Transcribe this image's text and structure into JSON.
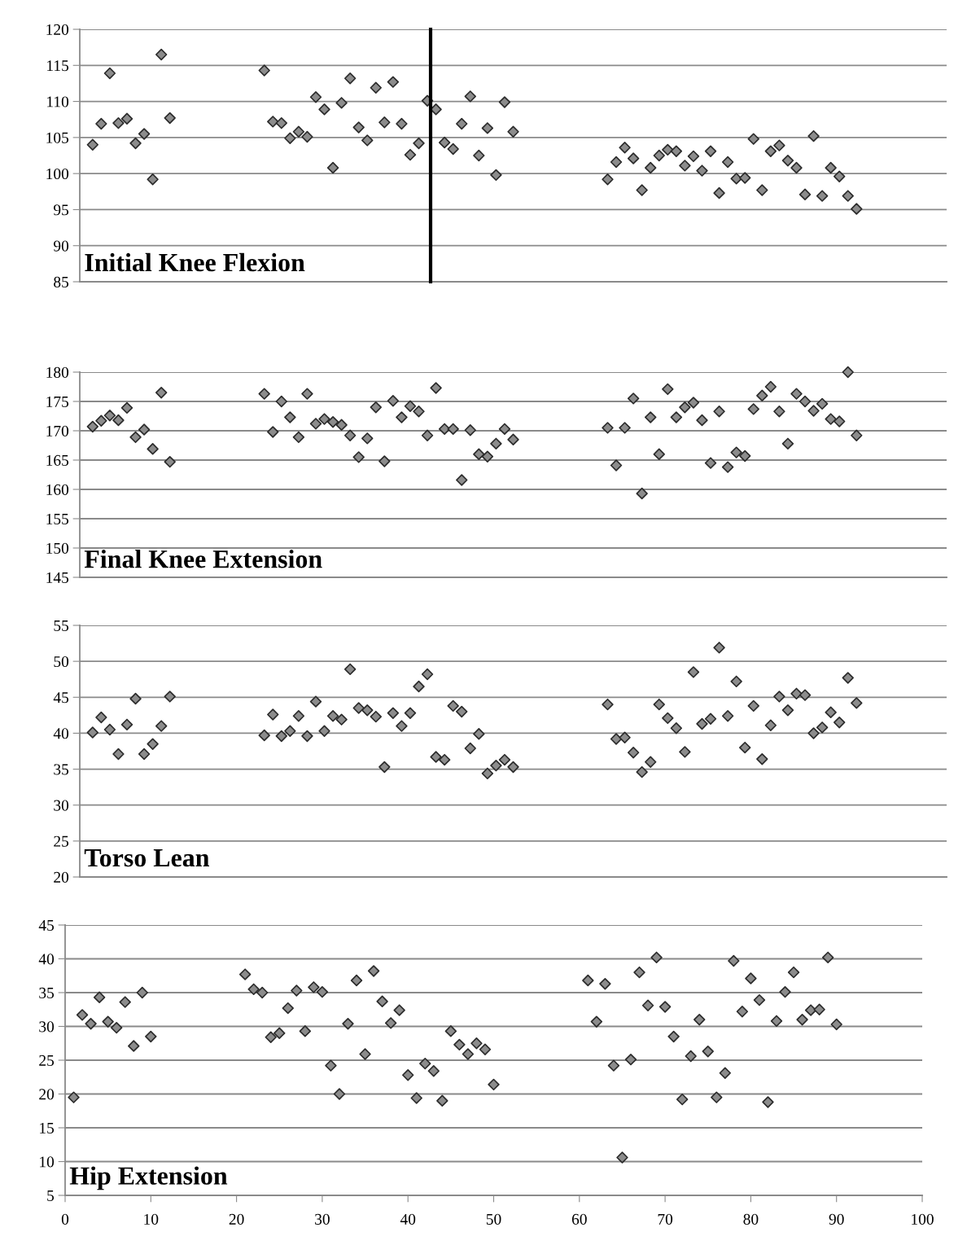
{
  "chart_data": [
    {
      "type": "scatter",
      "title": "Initial Knee Flexion",
      "color": "#8c8c8c",
      "marker": "diamond",
      "grid": "y",
      "tick_labels": "y",
      "categories": [
        null,
        null,
        null,
        null,
        null,
        null,
        null,
        null,
        null,
        null,
        null,
        null,
        null,
        null,
        null,
        null,
        null,
        null,
        null,
        null,
        null,
        null,
        null,
        null,
        null,
        null,
        null,
        null,
        null,
        null,
        null,
        null,
        null,
        null,
        null,
        null,
        null,
        null,
        null,
        null,
        null,
        null,
        null,
        null,
        null,
        null,
        null,
        null,
        null,
        null,
        null,
        null,
        null,
        null,
        null,
        null,
        null,
        null,
        null,
        null,
        null,
        null,
        null,
        null,
        null,
        null,
        null,
        null,
        null,
        null,
        null,
        null,
        null,
        null,
        null,
        null,
        null,
        null,
        null,
        null,
        null,
        null,
        null,
        null,
        null,
        null,
        null,
        null,
        null,
        null,
        null,
        null,
        null,
        null,
        null,
        null,
        null,
        null,
        null,
        null,
        null
      ],
      "values": [
        null,
        104.0,
        106.9,
        113.9,
        107.0,
        107.6,
        104.2,
        105.5,
        99.2,
        116.5,
        107.7,
        null,
        null,
        null,
        null,
        null,
        null,
        null,
        null,
        null,
        null,
        114.3,
        107.2,
        107.0,
        104.9,
        105.8,
        105.1,
        110.6,
        108.9,
        100.8,
        109.8,
        113.2,
        106.4,
        104.6,
        111.9,
        107.1,
        112.7,
        106.9,
        102.6,
        104.2,
        110.1,
        108.9,
        104.3,
        103.4,
        106.9,
        110.7,
        102.5,
        106.3,
        99.8,
        109.9,
        105.8,
        null,
        null,
        null,
        null,
        null,
        null,
        null,
        null,
        null,
        null,
        99.2,
        101.6,
        103.6,
        102.1,
        97.7,
        100.8,
        102.5,
        103.3,
        103.1,
        101.1,
        102.4,
        100.4,
        103.1,
        97.3,
        101.6,
        99.3,
        99.4,
        104.8,
        97.7,
        103.1,
        103.9,
        101.8,
        100.8,
        97.1,
        105.2,
        96.9,
        100.8,
        99.6,
        96.9,
        95.1,
        null,
        null,
        null,
        null,
        null,
        null,
        null,
        null,
        null,
        null
      ],
      "ylim": [
        85,
        120
      ],
      "yticks": [
        85,
        90,
        95,
        100,
        105,
        110,
        115,
        120
      ]
    },
    {
      "type": "scatter",
      "title": "Final Knee Extension",
      "color": "#8c8c8c",
      "marker": "diamond",
      "grid": "y",
      "tick_labels": "y",
      "categories": [
        null,
        null,
        null,
        null,
        null,
        null,
        null,
        null,
        null,
        null,
        null,
        null,
        null,
        null,
        null,
        null,
        null,
        null,
        null,
        null,
        null,
        null,
        null,
        null,
        null,
        null,
        null,
        null,
        null,
        null,
        null,
        null,
        null,
        null,
        null,
        null,
        null,
        null,
        null,
        null,
        null,
        null,
        null,
        null,
        null,
        null,
        null,
        null,
        null,
        null,
        null,
        null,
        null,
        null,
        null,
        null,
        null,
        null,
        null,
        null,
        null,
        null,
        null,
        null,
        null,
        null,
        null,
        null,
        null,
        null,
        null,
        null,
        null,
        null,
        null,
        null,
        null,
        null,
        null,
        null,
        null,
        null,
        null,
        null,
        null,
        null,
        null,
        null,
        null,
        null,
        null,
        null,
        null,
        null,
        null,
        null,
        null,
        null,
        null,
        null,
        null
      ],
      "values": [
        null,
        170.7,
        171.7,
        172.6,
        171.8,
        173.9,
        168.9,
        170.2,
        166.9,
        176.5,
        164.7,
        null,
        null,
        null,
        null,
        null,
        null,
        null,
        null,
        null,
        null,
        176.3,
        169.8,
        175.0,
        172.3,
        168.9,
        176.3,
        171.2,
        172.0,
        171.5,
        171.0,
        169.2,
        165.5,
        168.7,
        174.0,
        164.8,
        175.1,
        172.3,
        174.2,
        173.3,
        169.2,
        177.3,
        170.3,
        170.3,
        161.6,
        170.1,
        166.0,
        165.6,
        167.8,
        170.3,
        168.5,
        null,
        null,
        null,
        null,
        null,
        null,
        null,
        null,
        null,
        null,
        170.5,
        164.1,
        170.5,
        175.5,
        159.3,
        172.3,
        166.0,
        177.1,
        172.3,
        174.0,
        174.8,
        171.8,
        164.5,
        173.3,
        163.8,
        166.3,
        165.7,
        173.7,
        176.0,
        177.5,
        173.3,
        167.8,
        176.3,
        175.0,
        173.4,
        174.6,
        172.0,
        171.6,
        180.0,
        169.2,
        null,
        null,
        null,
        null,
        null,
        null,
        null,
        null,
        null,
        null
      ],
      "ylim": [
        145,
        180
      ],
      "yticks": [
        145,
        150,
        155,
        160,
        165,
        170,
        175,
        180
      ]
    },
    {
      "type": "scatter",
      "title": "Torso Lean",
      "color": "#8c8c8c",
      "marker": "diamond",
      "grid": "y",
      "tick_labels": "y",
      "categories": [
        null,
        null,
        null,
        null,
        null,
        null,
        null,
        null,
        null,
        null,
        null,
        null,
        null,
        null,
        null,
        null,
        null,
        null,
        null,
        null,
        null,
        null,
        null,
        null,
        null,
        null,
        null,
        null,
        null,
        null,
        null,
        null,
        null,
        null,
        null,
        null,
        null,
        null,
        null,
        null,
        null,
        null,
        null,
        null,
        null,
        null,
        null,
        null,
        null,
        null,
        null,
        null,
        null,
        null,
        null,
        null,
        null,
        null,
        null,
        null,
        null,
        null,
        null,
        null,
        null,
        null,
        null,
        null,
        null,
        null,
        null,
        null,
        null,
        null,
        null,
        null,
        null,
        null,
        null,
        null,
        null,
        null,
        null,
        null,
        null,
        null,
        null,
        null,
        null,
        null,
        null,
        null,
        null,
        null,
        null,
        null,
        null,
        null,
        null,
        null,
        null
      ],
      "values": [
        null,
        40.1,
        42.2,
        40.5,
        37.1,
        41.2,
        44.8,
        37.1,
        38.5,
        41.0,
        45.1,
        null,
        null,
        null,
        null,
        null,
        null,
        null,
        null,
        null,
        null,
        39.7,
        42.6,
        39.6,
        40.3,
        42.4,
        39.6,
        44.4,
        40.3,
        42.4,
        41.9,
        48.9,
        43.5,
        43.2,
        42.3,
        35.3,
        42.8,
        41.0,
        42.8,
        46.5,
        48.2,
        36.7,
        36.3,
        43.8,
        43.0,
        37.9,
        39.9,
        34.4,
        35.5,
        36.3,
        35.3,
        null,
        null,
        null,
        null,
        null,
        null,
        null,
        null,
        null,
        null,
        44.0,
        39.2,
        39.4,
        37.3,
        34.6,
        36.0,
        44.0,
        42.1,
        40.7,
        37.4,
        48.5,
        41.3,
        42.0,
        51.9,
        42.4,
        47.2,
        38.0,
        43.8,
        36.4,
        41.1,
        45.1,
        43.2,
        45.5,
        45.3,
        40.0,
        40.8,
        42.9,
        41.5,
        47.7,
        44.2,
        null,
        null,
        null,
        null,
        null,
        null,
        null,
        null,
        null,
        null
      ],
      "ylim": [
        20,
        55
      ],
      "yticks": [
        20,
        25,
        30,
        35,
        40,
        45,
        50,
        55
      ]
    },
    {
      "type": "scatter",
      "title": "Hip Extension",
      "color": "#8c8c8c",
      "marker": "diamond",
      "grid": "y",
      "x": [
        1,
        2,
        3,
        4,
        5,
        6,
        7,
        8,
        9,
        10,
        21,
        22,
        23,
        24,
        25,
        26,
        27,
        28,
        29,
        30,
        31,
        32,
        33,
        34,
        35,
        36,
        37,
        38,
        39,
        40,
        41,
        42,
        43,
        44,
        45,
        46,
        47,
        48,
        49,
        50,
        61,
        62,
        63,
        64,
        65,
        66,
        67,
        68,
        69,
        70,
        71,
        72,
        73,
        74,
        75,
        76,
        77,
        78,
        79,
        80,
        81,
        82,
        83,
        84,
        85,
        86,
        87,
        88,
        89,
        90
      ],
      "values": [
        19.5,
        31.7,
        30.4,
        34.3,
        30.7,
        29.8,
        33.6,
        27.1,
        35.0,
        28.5,
        37.7,
        35.5,
        35.0,
        28.4,
        29.0,
        32.7,
        35.3,
        29.3,
        35.8,
        35.1,
        24.2,
        20.0,
        30.4,
        36.8,
        25.9,
        38.2,
        33.7,
        30.5,
        32.4,
        22.8,
        19.4,
        24.5,
        23.4,
        19.0,
        29.3,
        27.3,
        25.9,
        27.5,
        26.6,
        21.4,
        36.8,
        30.7,
        36.3,
        24.2,
        10.6,
        25.1,
        38.0,
        33.1,
        40.2,
        32.9,
        28.5,
        19.2,
        25.6,
        31.0,
        26.3,
        19.5,
        23.1,
        39.7,
        32.2,
        37.1,
        33.9,
        18.8,
        30.8,
        35.1,
        38.0,
        31.0,
        32.4,
        32.5,
        40.2,
        30.3
      ],
      "xlim": [
        0,
        100
      ],
      "xticks": [
        0,
        10,
        20,
        30,
        40,
        50,
        60,
        70,
        80,
        90,
        100
      ],
      "ylim": [
        5,
        45
      ],
      "yticks": [
        5,
        10,
        15,
        20,
        25,
        30,
        35,
        40,
        45
      ]
    }
  ]
}
